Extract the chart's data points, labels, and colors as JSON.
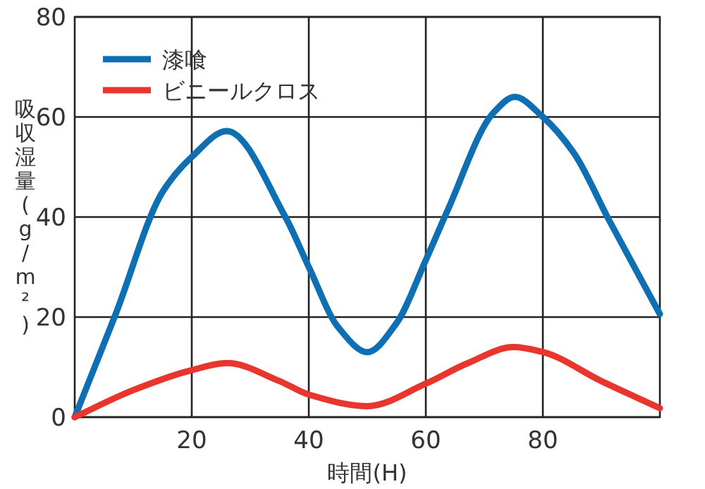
{
  "chart_data": {
    "type": "line",
    "xlabel": "時間(H)",
    "ylabel": "吸収湿量 (g/m²)",
    "xlim": [
      0,
      100
    ],
    "ylim": [
      0,
      80
    ],
    "xticks": [
      20,
      40,
      60,
      80
    ],
    "yticks": [
      0,
      20,
      40,
      60,
      80
    ],
    "grid": true,
    "legend": "top left",
    "series": [
      {
        "name": "漆喰",
        "color": "#0f6fb3",
        "x": [
          0,
          7,
          15,
          20,
          26,
          36,
          40,
          45,
          50,
          55,
          60,
          63.6,
          71.6,
          75.2,
          80,
          85.3,
          91.3,
          100
        ],
        "values": [
          0,
          20.6,
          45,
          52,
          57.2,
          40,
          30,
          18,
          13,
          18.8,
          31.4,
          41,
          60.9,
          64,
          60,
          52.8,
          39.4,
          20.6
        ]
      },
      {
        "name": "ビニールクロス",
        "color": "#e8352e",
        "x": [
          0,
          10,
          20,
          26,
          35,
          40,
          50,
          60,
          67,
          75,
          80,
          90,
          100
        ],
        "values": [
          0,
          5.4,
          9.4,
          10.8,
          7.2,
          4.5,
          2.2,
          6.7,
          10.7,
          14,
          13,
          7.2,
          1.8
        ]
      }
    ]
  }
}
